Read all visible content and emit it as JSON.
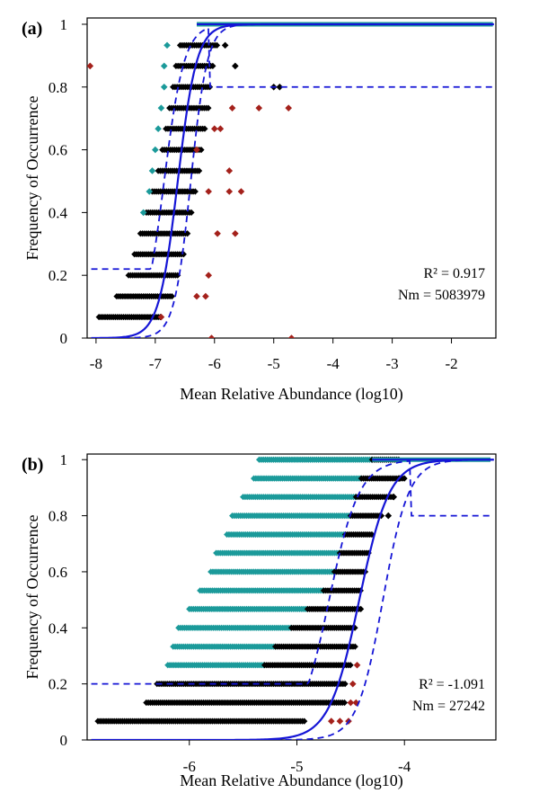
{
  "colors": {
    "black": "#000000",
    "teal": "#1b9a9a",
    "red": "#a4211b",
    "blue": "#1515d6"
  },
  "chart_data": [
    {
      "panel_label": "(a)",
      "type": "scatter",
      "xlabel": "Mean Relative Abundance (log10)",
      "ylabel": "Frequency  of Occurrence",
      "xlim": [
        -8.15,
        -1.25
      ],
      "ylim": [
        0,
        1.02
      ],
      "xticks": [
        -8,
        -7,
        -6,
        -5,
        -4,
        -3,
        -2
      ],
      "xtick_labels": [
        "-8",
        "-7",
        "-6",
        "-5",
        "-4",
        "-3",
        "-2"
      ],
      "yticks": [
        0,
        0.2,
        0.4,
        0.6,
        0.8,
        1
      ],
      "ytick_labels": [
        "0",
        "0.2",
        "0.4",
        "0.6",
        "0.8",
        "1"
      ],
      "annotations": [
        "R² = 0.917",
        "Nm = 5083979"
      ],
      "fit": {
        "type": "logistic",
        "midpoint": -6.62,
        "width": 0.16
      },
      "ci_lower": {
        "midpoint": -6.4,
        "width": 0.14
      },
      "ci_upper": {
        "midpoint": -6.85,
        "width": 0.17,
        "floor": 0.22,
        "ceiling_x": -6.1,
        "ceiling": 0.8
      },
      "black_rows": [
        {
          "y": 0.067,
          "x": [
            -7.95,
            -6.9
          ]
        },
        {
          "y": 0.133,
          "x": [
            -7.65,
            -6.7
          ]
        },
        {
          "y": 0.2,
          "x": [
            -7.45,
            -6.6
          ]
        },
        {
          "y": 0.267,
          "x": [
            -7.35,
            -6.52
          ]
        },
        {
          "y": 0.333,
          "x": [
            -7.25,
            -6.45
          ]
        },
        {
          "y": 0.4,
          "x": [
            -7.15,
            -6.38
          ]
        },
        {
          "y": 0.467,
          "x": [
            -7.05,
            -6.32
          ]
        },
        {
          "y": 0.533,
          "x": [
            -6.95,
            -6.26
          ]
        },
        {
          "y": 0.6,
          "x": [
            -6.88,
            -6.2
          ]
        },
        {
          "y": 0.667,
          "x": [
            -6.82,
            -6.15
          ]
        },
        {
          "y": 0.733,
          "x": [
            -6.76,
            -6.1
          ]
        },
        {
          "y": 0.8,
          "x": [
            -6.7,
            -6.05
          ]
        },
        {
          "y": 0.867,
          "x": [
            -6.65,
            -6.0
          ]
        },
        {
          "y": 0.933,
          "x": [
            -6.58,
            -5.95
          ]
        }
      ],
      "black_points": [
        [
          -5.65,
          0.867
        ],
        [
          -5.82,
          0.933
        ],
        [
          -5.0,
          0.8
        ],
        [
          -4.9,
          0.8
        ]
      ],
      "teal_points": [
        [
          -6.8,
          0.933
        ],
        [
          -6.85,
          0.8
        ],
        [
          -6.9,
          0.733
        ],
        [
          -6.95,
          0.667
        ],
        [
          -7.0,
          0.6
        ],
        [
          -7.05,
          0.533
        ],
        [
          -7.1,
          0.467
        ],
        [
          -7.2,
          0.4
        ],
        [
          -6.85,
          0.867
        ]
      ],
      "red_points": [
        [
          -8.1,
          0.867
        ],
        [
          -5.7,
          0.733
        ],
        [
          -5.25,
          0.733
        ],
        [
          -4.75,
          0.733
        ],
        [
          -6.0,
          0.667
        ],
        [
          -5.9,
          0.667
        ],
        [
          -6.3,
          0.6
        ],
        [
          -5.75,
          0.533
        ],
        [
          -6.1,
          0.467
        ],
        [
          -5.75,
          0.467
        ],
        [
          -5.55,
          0.467
        ],
        [
          -5.95,
          0.333
        ],
        [
          -5.65,
          0.333
        ],
        [
          -6.1,
          0.2
        ],
        [
          -6.3,
          0.133
        ],
        [
          -6.15,
          0.133
        ],
        [
          -6.05,
          0.0
        ],
        [
          -4.7,
          0.0
        ],
        [
          -6.9,
          0.067
        ]
      ],
      "top_line": {
        "y": 1.0,
        "x": [
          -6.3,
          -1.3
        ]
      }
    },
    {
      "panel_label": "(b)",
      "type": "scatter",
      "xlabel": "Mean Relative Abundance (log10)",
      "ylabel": "Frequency  of Occurrence",
      "xlim": [
        -6.95,
        -3.15
      ],
      "ylim": [
        0,
        1.02
      ],
      "xticks": [
        -6,
        -5,
        -4
      ],
      "xtick_labels": [
        "-6",
        "-5",
        "-4"
      ],
      "yticks": [
        0,
        0.2,
        0.4,
        0.6,
        0.8,
        1
      ],
      "ytick_labels": [
        "0",
        "0.2",
        "0.4",
        "0.6",
        "0.8",
        "1"
      ],
      "annotations": [
        "R² = -1.091",
        "Nm = 27242"
      ],
      "fit": {
        "type": "logistic",
        "midpoint": -4.42,
        "width": 0.14
      },
      "ci_lower": {
        "midpoint": -4.2,
        "width": 0.12
      },
      "ci_upper": {
        "midpoint": -4.7,
        "width": 0.14,
        "floor": 0.2,
        "ceiling_x": -3.95,
        "ceiling": 0.8
      },
      "rows": [
        {
          "y": 0.067,
          "black": [
            -6.85,
            -4.92
          ]
        },
        {
          "y": 0.133,
          "black": [
            -6.4,
            -4.55
          ]
        },
        {
          "y": 0.2,
          "black": [
            -6.3,
            -4.55
          ]
        },
        {
          "y": 0.267,
          "teal": [
            -6.2,
            -5.3
          ],
          "black": [
            -5.3,
            -4.5
          ]
        },
        {
          "y": 0.333,
          "teal": [
            -6.15,
            -5.2
          ],
          "black": [
            -5.2,
            -4.45
          ]
        },
        {
          "y": 0.4,
          "teal": [
            -6.1,
            -5.05
          ],
          "black": [
            -5.05,
            -4.45
          ]
        },
        {
          "y": 0.467,
          "teal": [
            -6.0,
            -4.9
          ],
          "black": [
            -4.9,
            -4.4
          ]
        },
        {
          "y": 0.533,
          "teal": [
            -5.9,
            -4.75
          ],
          "black": [
            -4.75,
            -4.4
          ]
        },
        {
          "y": 0.6,
          "teal": [
            -5.8,
            -4.65
          ],
          "black": [
            -4.65,
            -4.35
          ]
        },
        {
          "y": 0.667,
          "teal": [
            -5.75,
            -4.6
          ],
          "black": [
            -4.6,
            -4.32
          ]
        },
        {
          "y": 0.733,
          "teal": [
            -5.65,
            -4.55
          ],
          "black": [
            -4.55,
            -4.3
          ]
        },
        {
          "y": 0.8,
          "teal": [
            -5.6,
            -4.5
          ],
          "black": [
            -4.5,
            -4.2
          ]
        },
        {
          "y": 0.867,
          "teal": [
            -5.5,
            -4.45
          ],
          "black": [
            -4.45,
            -4.1
          ]
        },
        {
          "y": 0.933,
          "teal": [
            -5.4,
            -4.4
          ],
          "black": [
            -4.4,
            -4.0
          ]
        },
        {
          "y": 1.0,
          "teal": [
            -5.35,
            -4.3
          ],
          "black": [
            -4.3,
            -4.05
          ]
        }
      ],
      "black_points": [
        [
          -4.15,
          0.8
        ],
        [
          -4.1,
          0.867
        ],
        [
          -4.05,
          0.933
        ]
      ],
      "red_points": [
        [
          -4.52,
          0.067
        ],
        [
          -4.6,
          0.067
        ],
        [
          -4.68,
          0.067
        ],
        [
          -4.5,
          0.133
        ],
        [
          -4.45,
          0.133
        ],
        [
          -4.48,
          0.2
        ],
        [
          -4.44,
          0.267
        ]
      ],
      "top_line": {
        "y": 1.0,
        "x": [
          -4.3,
          -3.2
        ]
      }
    }
  ]
}
